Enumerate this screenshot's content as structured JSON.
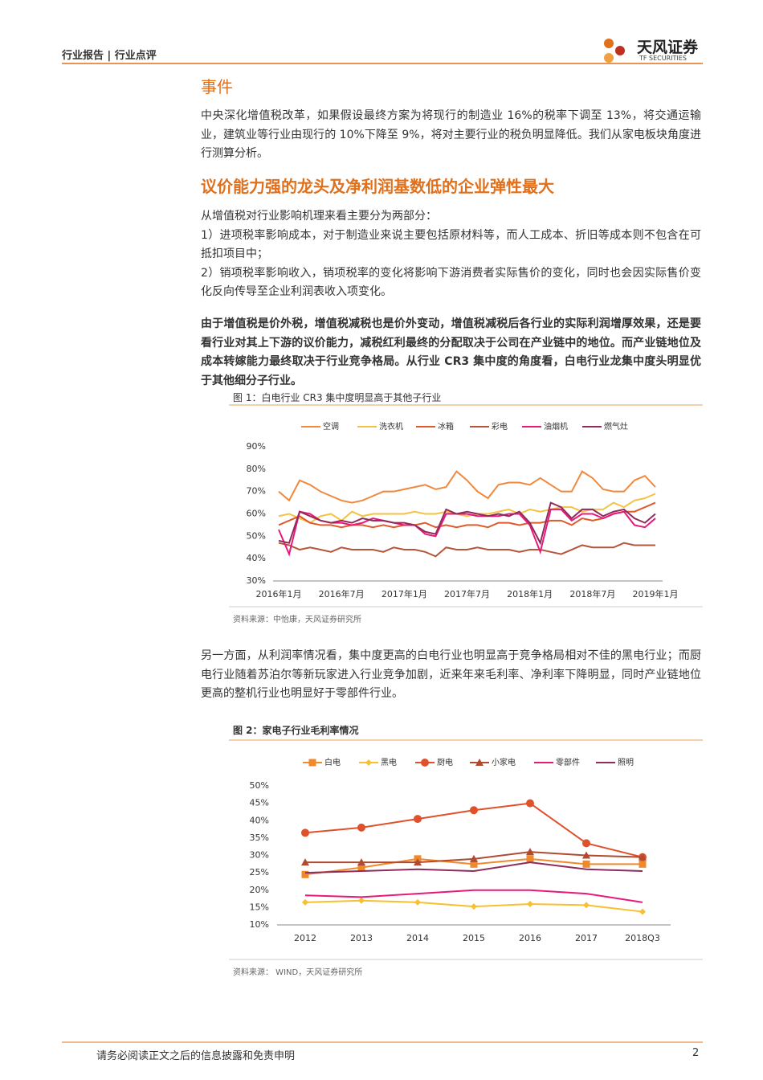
{
  "header": {
    "left": "行业报告 | 行业点评",
    "logo": "天风证券",
    "logo_sub": "TF SECURITIES"
  },
  "section1": {
    "title": "事件",
    "text": "中央深化增值税改革，如果假设最终方案为将现行的制造业 16%的税率下调至 13%，将交通运输业，建筑业等行业由现行的 10%下降至 9%，将对主要行业的税负明显降低。我们从家电板块角度进行测算分析。"
  },
  "section2": {
    "title": "议价能力强的龙头及净利润基数低的企业弹性最大",
    "lines": [
      "从增值税对行业影响机理来看主要分为两部分：",
      "1）进项税率影响成本，对于制造业来说主要包括原材料等，而人工成本、折旧等成本则不包含在可抵扣项目中；",
      "2）销项税率影响收入，销项税率的变化将影响下游消费者实际售价的变化，同时也会因实际售价变化反向传导至企业利润表收入项变化。"
    ],
    "bold": "由于增值税是价外税，增值税减税也是价外变动，增值税减税后各行业的实际利润增厚效果，还是要看行业对其上下游的议价能力，减税红利最终的分配取决于公司在产业链中的地位。而产业链地位及成本转嫁能力最终取决于行业竞争格局。从行业 CR3 集中度的角度看，白电行业龙集中度头明显优于其他细分子行业。",
    "text2": "另一方面，从利润率情况看，集中度更高的白电行业也明显高于竞争格局相对不佳的黑电行业；而厨电行业随着苏泊尔等新玩家进入行业竞争加剧，近来年来毛利率、净利率下降明显，同时产业链地位更高的整机行业也明显好于零部件行业。"
  },
  "footer": {
    "text": "请务必阅读正文之后的信息披露和免责申明",
    "page": 2
  },
  "chart_data": [
    {
      "type": "line",
      "title": "图 1：白电行业 CR3 集中度明显高于其他子行业",
      "source": "资料来源：中怡康，天风证券研究所",
      "legend": "top",
      "grid": false,
      "categories": [
        "2016年1月",
        null,
        null,
        null,
        null,
        null,
        "2016年7月",
        null,
        null,
        null,
        null,
        null,
        "2017年1月",
        null,
        null,
        null,
        null,
        null,
        "2017年7月",
        null,
        null,
        null,
        null,
        null,
        "2018年1月",
        null,
        null,
        null,
        null,
        null,
        "2018年7月",
        null,
        null,
        null,
        null,
        null,
        "2019年1月"
      ],
      "ylim": [
        30,
        90
      ],
      "yticks": [
        {
          "value": 30,
          "label": "30%"
        },
        {
          "value": 40,
          "label": "40%"
        },
        {
          "value": 50,
          "label": "50%"
        },
        {
          "value": 60,
          "label": "60%"
        },
        {
          "value": 70,
          "label": "70%"
        },
        {
          "value": 80,
          "label": "80%"
        },
        {
          "value": 90,
          "label": "90%"
        }
      ],
      "series": [
        {
          "name": "空调",
          "color": "#f0883e",
          "values": [
            70,
            66,
            75,
            73,
            70,
            68,
            66,
            65,
            66,
            68,
            70,
            70,
            71,
            72,
            73,
            71,
            72,
            79,
            75,
            70,
            67,
            73,
            74,
            74,
            73,
            76,
            73,
            70,
            70,
            79,
            76,
            71,
            70,
            70,
            75,
            77,
            72
          ]
        },
        {
          "name": "洗衣机",
          "color": "#f5c242",
          "values": [
            59,
            60,
            58,
            56,
            59,
            60,
            57,
            61,
            59,
            60,
            60,
            60,
            60,
            61,
            60,
            60,
            61,
            60,
            59,
            60,
            60,
            61,
            62,
            60,
            62,
            61,
            62,
            63,
            63,
            61,
            62,
            62,
            65,
            63,
            66,
            67,
            69
          ]
        },
        {
          "name": "冰箱",
          "color": "#e05a2a",
          "values": [
            55,
            57,
            59,
            56,
            55,
            55,
            54,
            55,
            55,
            54,
            55,
            54,
            55,
            55,
            56,
            54,
            55,
            54,
            55,
            55,
            54,
            56,
            56,
            55,
            56,
            56,
            57,
            57,
            55,
            58,
            57,
            58,
            60,
            61,
            61,
            63,
            65
          ]
        },
        {
          "name": "彩电",
          "color": "#b5553a",
          "values": [
            47,
            46,
            44,
            45,
            44,
            43,
            45,
            44,
            44,
            44,
            43,
            45,
            44,
            44,
            43,
            41,
            45,
            44,
            44,
            45,
            44,
            44,
            44,
            43,
            44,
            44,
            43,
            42,
            44,
            46,
            45,
            45,
            45,
            47,
            46,
            46,
            46
          ]
        },
        {
          "name": "油烟机",
          "color": "#e8197a",
          "values": [
            53,
            42,
            61,
            60,
            57,
            56,
            56,
            55,
            56,
            58,
            57,
            56,
            55,
            55,
            51,
            50,
            60,
            60,
            60,
            59,
            59,
            59,
            60,
            60,
            55,
            43,
            62,
            62,
            57,
            60,
            60,
            58,
            60,
            61,
            55,
            54,
            58
          ]
        },
        {
          "name": "燃气灶",
          "color": "#8e2c5c",
          "values": [
            48,
            47,
            61,
            59,
            57,
            56,
            57,
            56,
            58,
            57,
            57,
            56,
            56,
            55,
            52,
            51,
            62,
            60,
            61,
            60,
            59,
            60,
            59,
            61,
            56,
            47,
            65,
            63,
            58,
            62,
            62,
            59,
            61,
            62,
            58,
            56,
            60
          ]
        }
      ]
    },
    {
      "type": "line",
      "title": "图 2：家电子行业毛利率情况",
      "source": "资料来源： WIND，天风证券研究所",
      "legend": "top",
      "grid": false,
      "categories": [
        "2012",
        "2013",
        "2014",
        "2015",
        "2016",
        "2017",
        "2018Q3"
      ],
      "ylim": [
        10,
        50
      ],
      "yticks": [
        {
          "value": 10,
          "label": "10%"
        },
        {
          "value": 15,
          "label": "15%"
        },
        {
          "value": 20,
          "label": "20%"
        },
        {
          "value": 25,
          "label": "25%"
        },
        {
          "value": 30,
          "label": "30%"
        },
        {
          "value": 35,
          "label": "35%"
        },
        {
          "value": 40,
          "label": "40%"
        },
        {
          "value": 45,
          "label": "45%"
        },
        {
          "value": 50,
          "label": "50%"
        }
      ],
      "series": [
        {
          "name": "白电",
          "color": "#f0892c",
          "marker": "square",
          "values": [
            24.5,
            26.5,
            29,
            27.5,
            29,
            27.5,
            27.5
          ]
        },
        {
          "name": "黑电",
          "color": "#f8c030",
          "marker": "diamond",
          "values": [
            16.5,
            17,
            16.5,
            15.3,
            16,
            15.7,
            13.8
          ]
        },
        {
          "name": "厨电",
          "color": "#e0502a",
          "marker": "circle",
          "values": [
            36.5,
            38,
            40.5,
            43,
            45,
            33.5,
            29.5
          ]
        },
        {
          "name": "小家电",
          "color": "#b04a30",
          "marker": "triangle",
          "values": [
            28,
            28,
            28,
            29,
            31,
            30,
            29.5
          ]
        },
        {
          "name": "零部件",
          "color": "#e8197a",
          "values": [
            18.5,
            18,
            19,
            20,
            20,
            19,
            16.5
          ]
        },
        {
          "name": "照明",
          "color": "#8e2c5c",
          "values": [
            25,
            25.5,
            26,
            25.5,
            28,
            26,
            25.5
          ]
        }
      ]
    }
  ]
}
